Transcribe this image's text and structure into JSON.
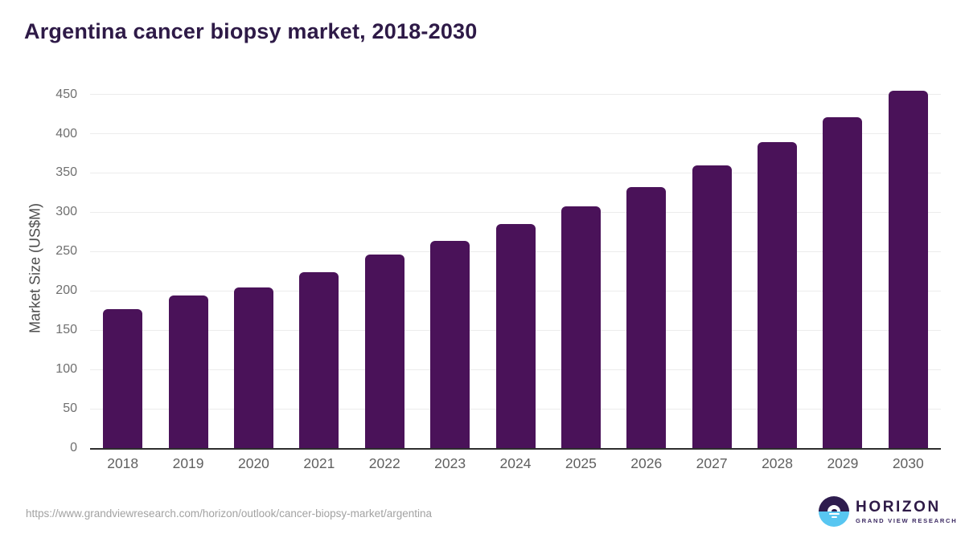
{
  "title": "Argentina cancer biopsy market, 2018-2030",
  "chart_data": {
    "type": "bar",
    "title": "Argentina cancer biopsy market, 2018-2030",
    "categories": [
      "2018",
      "2019",
      "2020",
      "2021",
      "2022",
      "2023",
      "2024",
      "2025",
      "2026",
      "2027",
      "2028",
      "2029",
      "2030"
    ],
    "values": [
      177,
      194,
      204,
      224,
      246,
      264,
      285,
      308,
      332,
      360,
      389,
      421,
      455
    ],
    "xlabel": "",
    "ylabel": "Market Size (US$M)",
    "ylim": [
      0,
      450
    ],
    "yticks": [
      0,
      50,
      100,
      150,
      200,
      250,
      300,
      350,
      400,
      450
    ],
    "grid": true,
    "legend": "none",
    "bar_color": "#4a1259"
  },
  "colors": {
    "title_text": "#2e1a47",
    "bar": "#4a1259",
    "axis_text": "#6f6f6f",
    "gridline": "#ececec",
    "baseline": "#2e2e2e",
    "url_text": "#a2a2a2",
    "logo_dark": "#2e1c4e",
    "logo_blue": "#58c6f1"
  },
  "footer": {
    "source_url": "https://www.grandviewresearch.com/horizon/outlook/cancer-biopsy-market/argentina",
    "logo": {
      "name": "HORIZON",
      "subtitle": "GRAND VIEW RESEARCH",
      "icon": "sunset-horizon-icon"
    }
  }
}
